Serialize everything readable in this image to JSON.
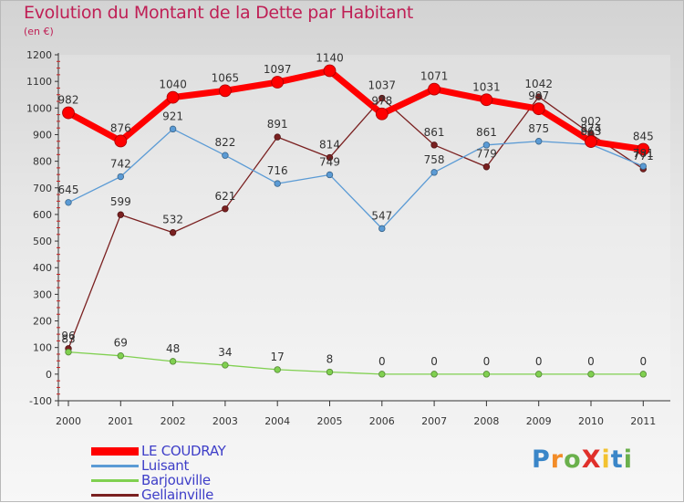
{
  "title": "Evolution du Montant de la Dette par Habitant",
  "subtitle": "(en €)",
  "chart_data": {
    "type": "line",
    "title": "Evolution du Montant de la Dette par Habitant",
    "subtitle": "(en €)",
    "xlabel": "",
    "ylabel": "",
    "x": [
      "2000",
      "2001",
      "2002",
      "2003",
      "2004",
      "2005",
      "2006",
      "2007",
      "2008",
      "2009",
      "2010",
      "2011"
    ],
    "ylim": [
      -100,
      1200
    ],
    "yticks": [
      "-100",
      "0",
      "100",
      "200",
      "300",
      "400",
      "500",
      "600",
      "700",
      "800",
      "900",
      "1000",
      "1100",
      "1200"
    ],
    "grid": false,
    "legend": "bottom-left",
    "series": [
      {
        "name": "LE COUDRAY",
        "color": "#ff0000",
        "values": [
          982,
          876,
          1040,
          1065,
          1097,
          1140,
          978,
          1071,
          1031,
          997,
          874,
          845
        ]
      },
      {
        "name": "Luisant",
        "color": "#5b9bd5",
        "values": [
          645,
          742,
          921,
          822,
          716,
          749,
          547,
          758,
          861,
          875,
          863,
          781
        ]
      },
      {
        "name": "Barjouville",
        "color": "#80d050",
        "values": [
          83,
          69,
          48,
          34,
          17,
          8,
          0,
          0,
          0,
          0,
          0,
          0
        ]
      },
      {
        "name": "Gellainville",
        "color": "#7a2020",
        "values": [
          96,
          599,
          532,
          621,
          891,
          814,
          1037,
          861,
          779,
          1042,
          902,
          771
        ]
      }
    ]
  },
  "logo": {
    "text": "ProXiti",
    "letters": [
      {
        "ch": "P",
        "color": "#3a86c8"
      },
      {
        "ch": "r",
        "color": "#f28c28"
      },
      {
        "ch": "o",
        "color": "#6ab04c"
      },
      {
        "ch": "X",
        "color": "#e0302b"
      },
      {
        "ch": "i",
        "color": "#f2c230"
      },
      {
        "ch": "t",
        "color": "#3a86c8"
      },
      {
        "ch": "i",
        "color": "#6ab04c"
      }
    ]
  }
}
